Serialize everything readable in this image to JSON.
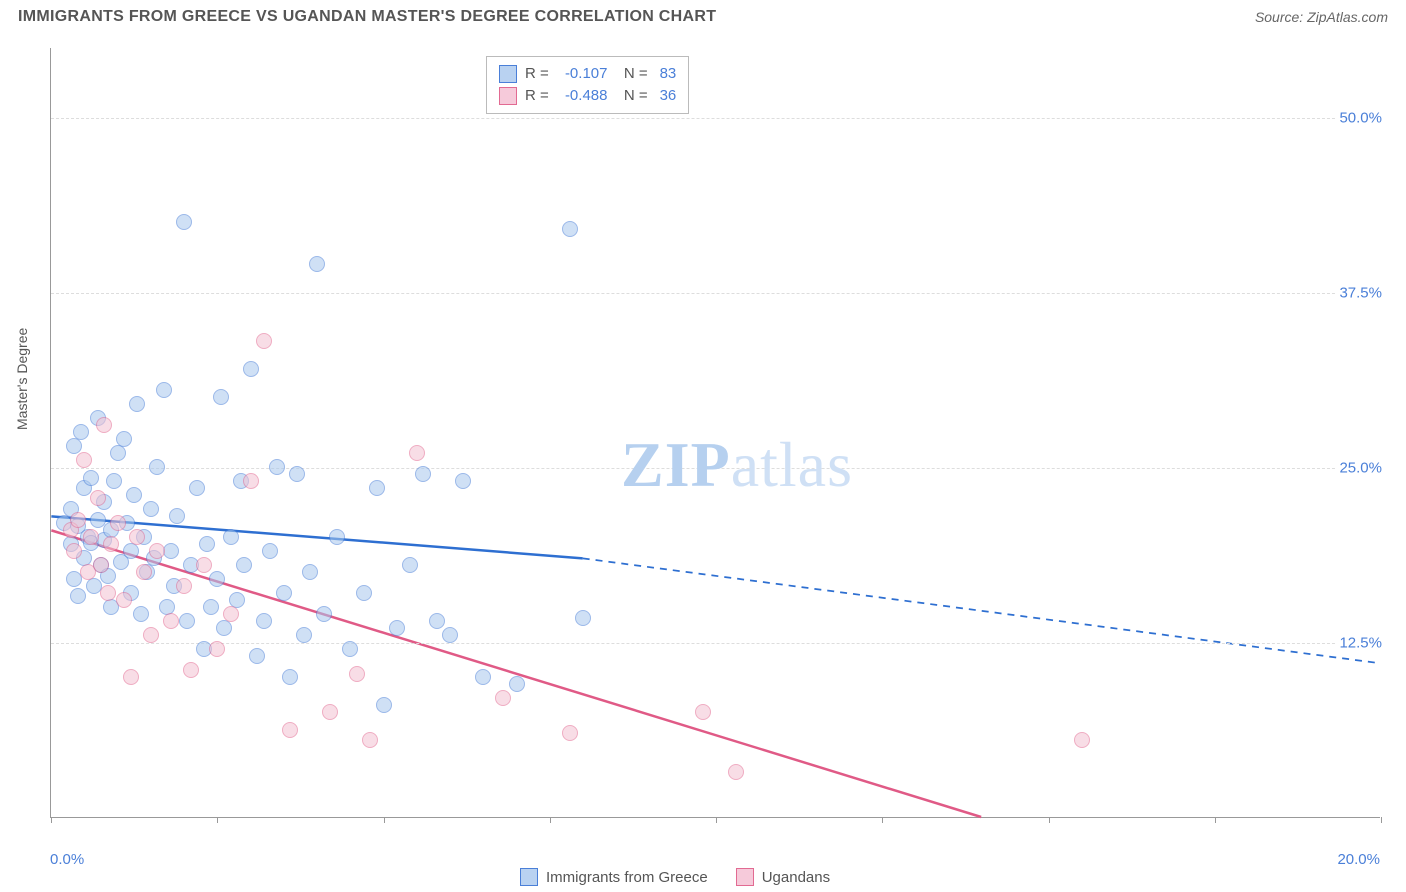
{
  "title": "IMMIGRANTS FROM GREECE VS UGANDAN MASTER'S DEGREE CORRELATION CHART",
  "source": "Source: ZipAtlas.com",
  "yaxis_label": "Master's Degree",
  "watermark": {
    "zip": "ZIP",
    "atlas": "atlas"
  },
  "chart": {
    "type": "scatter",
    "xlim": [
      0,
      20
    ],
    "ylim": [
      0,
      55
    ],
    "x_ticks": [
      0,
      2.5,
      5,
      7.5,
      10,
      12.5,
      15,
      17.5,
      20
    ],
    "x_tick_labels_shown": {
      "first": "0.0%",
      "last": "20.0%"
    },
    "y_gridlines": [
      12.5,
      25.0,
      37.5,
      50.0
    ],
    "y_tick_labels": [
      "12.5%",
      "25.0%",
      "37.5%",
      "50.0%"
    ],
    "grid_color": "#dddddd",
    "axis_color": "#999999",
    "background_color": "#ffffff",
    "label_color": "#4a7fd8",
    "marker_radius": 8,
    "marker_opacity": 0.55,
    "series": [
      {
        "name": "Immigrants from Greece",
        "swatch_fill": "#b9d2f1",
        "swatch_border": "#4a7fd8",
        "marker_fill": "#a8c8ee",
        "marker_stroke": "#4a7fd8",
        "R": "-0.107",
        "N": "83",
        "trend": {
          "x1": 0,
          "y1": 21.5,
          "x2": 8,
          "y2": 18.5,
          "dash_x2": 20,
          "dash_y2": 11,
          "color": "#2e6fd1",
          "width": 2.5
        },
        "points": [
          [
            0.2,
            21
          ],
          [
            0.3,
            19.5
          ],
          [
            0.3,
            22
          ],
          [
            0.35,
            26.5
          ],
          [
            0.35,
            17
          ],
          [
            0.4,
            20.8
          ],
          [
            0.4,
            15.8
          ],
          [
            0.45,
            27.5
          ],
          [
            0.5,
            23.5
          ],
          [
            0.5,
            18.5
          ],
          [
            0.55,
            20
          ],
          [
            0.6,
            19.6
          ],
          [
            0.6,
            24.2
          ],
          [
            0.65,
            16.5
          ],
          [
            0.7,
            21.2
          ],
          [
            0.7,
            28.5
          ],
          [
            0.75,
            18
          ],
          [
            0.8,
            19.8
          ],
          [
            0.8,
            22.5
          ],
          [
            0.85,
            17.2
          ],
          [
            0.9,
            20.5
          ],
          [
            0.9,
            15
          ],
          [
            0.95,
            24
          ],
          [
            1.0,
            26
          ],
          [
            1.05,
            18.2
          ],
          [
            1.1,
            27
          ],
          [
            1.15,
            21
          ],
          [
            1.2,
            19
          ],
          [
            1.2,
            16
          ],
          [
            1.25,
            23
          ],
          [
            1.3,
            29.5
          ],
          [
            1.35,
            14.5
          ],
          [
            1.4,
            20
          ],
          [
            1.45,
            17.5
          ],
          [
            1.5,
            22
          ],
          [
            1.55,
            18.5
          ],
          [
            1.6,
            25
          ],
          [
            1.7,
            30.5
          ],
          [
            1.75,
            15
          ],
          [
            1.8,
            19
          ],
          [
            1.85,
            16.5
          ],
          [
            1.9,
            21.5
          ],
          [
            2.0,
            42.5
          ],
          [
            2.05,
            14
          ],
          [
            2.1,
            18
          ],
          [
            2.2,
            23.5
          ],
          [
            2.3,
            12
          ],
          [
            2.35,
            19.5
          ],
          [
            2.4,
            15
          ],
          [
            2.5,
            17
          ],
          [
            2.55,
            30
          ],
          [
            2.6,
            13.5
          ],
          [
            2.7,
            20
          ],
          [
            2.8,
            15.5
          ],
          [
            2.85,
            24
          ],
          [
            2.9,
            18
          ],
          [
            3.0,
            32
          ],
          [
            3.1,
            11.5
          ],
          [
            3.2,
            14
          ],
          [
            3.3,
            19
          ],
          [
            3.4,
            25
          ],
          [
            3.5,
            16
          ],
          [
            3.6,
            10
          ],
          [
            3.7,
            24.5
          ],
          [
            3.8,
            13
          ],
          [
            3.9,
            17.5
          ],
          [
            4.0,
            39.5
          ],
          [
            4.1,
            14.5
          ],
          [
            4.3,
            20
          ],
          [
            4.5,
            12
          ],
          [
            4.7,
            16
          ],
          [
            4.9,
            23.5
          ],
          [
            5.0,
            8
          ],
          [
            5.2,
            13.5
          ],
          [
            5.4,
            18
          ],
          [
            5.6,
            24.5
          ],
          [
            5.8,
            14
          ],
          [
            6.0,
            13
          ],
          [
            6.2,
            24
          ],
          [
            6.5,
            10
          ],
          [
            7.0,
            9.5
          ],
          [
            7.8,
            42
          ],
          [
            8.0,
            14.2
          ]
        ]
      },
      {
        "name": "Ugandans",
        "swatch_fill": "#f6cada",
        "swatch_border": "#e26a92",
        "marker_fill": "#f3c2d2",
        "marker_stroke": "#e26a92",
        "R": "-0.488",
        "N": "36",
        "trend": {
          "x1": 0,
          "y1": 20.5,
          "x2": 14,
          "y2": 0,
          "color": "#e05a86",
          "width": 2.5
        },
        "points": [
          [
            0.3,
            20.5
          ],
          [
            0.35,
            19
          ],
          [
            0.4,
            21.2
          ],
          [
            0.5,
            25.5
          ],
          [
            0.55,
            17.5
          ],
          [
            0.6,
            20
          ],
          [
            0.7,
            22.8
          ],
          [
            0.75,
            18
          ],
          [
            0.8,
            28
          ],
          [
            0.85,
            16
          ],
          [
            0.9,
            19.5
          ],
          [
            1.0,
            21
          ],
          [
            1.1,
            15.5
          ],
          [
            1.2,
            10
          ],
          [
            1.3,
            20
          ],
          [
            1.4,
            17.5
          ],
          [
            1.5,
            13
          ],
          [
            1.6,
            19
          ],
          [
            1.8,
            14
          ],
          [
            2.0,
            16.5
          ],
          [
            2.1,
            10.5
          ],
          [
            2.3,
            18
          ],
          [
            2.5,
            12
          ],
          [
            2.7,
            14.5
          ],
          [
            3.0,
            24
          ],
          [
            3.2,
            34
          ],
          [
            3.6,
            6.2
          ],
          [
            4.2,
            7.5
          ],
          [
            4.6,
            10.2
          ],
          [
            4.8,
            5.5
          ],
          [
            5.5,
            26
          ],
          [
            6.8,
            8.5
          ],
          [
            7.8,
            6
          ],
          [
            9.8,
            7.5
          ],
          [
            10.3,
            3.2
          ],
          [
            15.5,
            5.5
          ]
        ]
      }
    ]
  },
  "legend_bottom": [
    {
      "label": "Immigrants from Greece",
      "fill": "#b9d2f1",
      "border": "#4a7fd8"
    },
    {
      "label": "Ugandans",
      "fill": "#f6cada",
      "border": "#e26a92"
    }
  ]
}
